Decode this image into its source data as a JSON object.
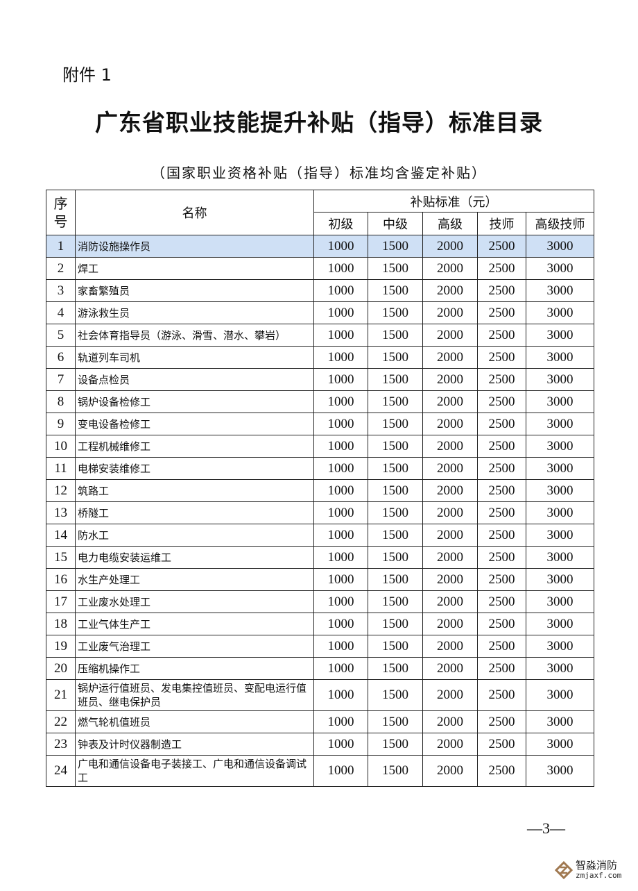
{
  "attachment_label": "附件 1",
  "title": "广东省职业技能提升补贴（指导）标准目录",
  "subtitle": "（国家职业资格补贴（指导）标准均含鉴定补贴）",
  "table": {
    "headers": {
      "seq": "序号",
      "name": "名称",
      "group": "补贴标准（元）",
      "levels": [
        "初级",
        "中级",
        "高级",
        "技师",
        "高级技师"
      ]
    },
    "rows": [
      {
        "seq": "1",
        "name": "消防设施操作员",
        "values": [
          "1000",
          "1500",
          "2000",
          "2500",
          "3000"
        ],
        "highlighted": true
      },
      {
        "seq": "2",
        "name": "焊工",
        "values": [
          "1000",
          "1500",
          "2000",
          "2500",
          "3000"
        ]
      },
      {
        "seq": "3",
        "name": "家畜繁殖员",
        "values": [
          "1000",
          "1500",
          "2000",
          "2500",
          "3000"
        ]
      },
      {
        "seq": "4",
        "name": "游泳救生员",
        "values": [
          "1000",
          "1500",
          "2000",
          "2500",
          "3000"
        ]
      },
      {
        "seq": "5",
        "name": "社会体育指导员（游泳、滑雪、潜水、攀岩）",
        "values": [
          "1000",
          "1500",
          "2000",
          "2500",
          "3000"
        ]
      },
      {
        "seq": "6",
        "name": "轨道列车司机",
        "values": [
          "1000",
          "1500",
          "2000",
          "2500",
          "3000"
        ]
      },
      {
        "seq": "7",
        "name": "设备点检员",
        "values": [
          "1000",
          "1500",
          "2000",
          "2500",
          "3000"
        ]
      },
      {
        "seq": "8",
        "name": "锅炉设备检修工",
        "values": [
          "1000",
          "1500",
          "2000",
          "2500",
          "3000"
        ]
      },
      {
        "seq": "9",
        "name": "变电设备检修工",
        "values": [
          "1000",
          "1500",
          "2000",
          "2500",
          "3000"
        ]
      },
      {
        "seq": "10",
        "name": "工程机械维修工",
        "values": [
          "1000",
          "1500",
          "2000",
          "2500",
          "3000"
        ]
      },
      {
        "seq": "11",
        "name": "电梯安装维修工",
        "values": [
          "1000",
          "1500",
          "2000",
          "2500",
          "3000"
        ]
      },
      {
        "seq": "12",
        "name": "筑路工",
        "values": [
          "1000",
          "1500",
          "2000",
          "2500",
          "3000"
        ]
      },
      {
        "seq": "13",
        "name": "桥隧工",
        "values": [
          "1000",
          "1500",
          "2000",
          "2500",
          "3000"
        ]
      },
      {
        "seq": "14",
        "name": "防水工",
        "values": [
          "1000",
          "1500",
          "2000",
          "2500",
          "3000"
        ]
      },
      {
        "seq": "15",
        "name": "电力电缆安装运维工",
        "values": [
          "1000",
          "1500",
          "2000",
          "2500",
          "3000"
        ]
      },
      {
        "seq": "16",
        "name": "水生产处理工",
        "values": [
          "1000",
          "1500",
          "2000",
          "2500",
          "3000"
        ]
      },
      {
        "seq": "17",
        "name": "工业废水处理工",
        "values": [
          "1000",
          "1500",
          "2000",
          "2500",
          "3000"
        ]
      },
      {
        "seq": "18",
        "name": "工业气体生产工",
        "values": [
          "1000",
          "1500",
          "2000",
          "2500",
          "3000"
        ]
      },
      {
        "seq": "19",
        "name": "工业废气治理工",
        "values": [
          "1000",
          "1500",
          "2000",
          "2500",
          "3000"
        ]
      },
      {
        "seq": "20",
        "name": "压缩机操作工",
        "values": [
          "1000",
          "1500",
          "2000",
          "2500",
          "3000"
        ]
      },
      {
        "seq": "21",
        "name": "锅炉运行值班员、发电集控值班员、变配电运行值班员、继电保护员",
        "values": [
          "1000",
          "1500",
          "2000",
          "2500",
          "3000"
        ],
        "tall": true
      },
      {
        "seq": "22",
        "name": "燃气轮机值班员",
        "values": [
          "1000",
          "1500",
          "2000",
          "2500",
          "3000"
        ]
      },
      {
        "seq": "23",
        "name": "钟表及计时仪器制造工",
        "values": [
          "1000",
          "1500",
          "2000",
          "2500",
          "3000"
        ]
      },
      {
        "seq": "24",
        "name": "广电和通信设备电子装接工、广电和通信设备调试工",
        "values": [
          "1000",
          "1500",
          "2000",
          "2500",
          "3000"
        ],
        "tall": true
      }
    ]
  },
  "page_number": "—3—",
  "highlight_color": "#cfe0f5",
  "watermark": {
    "name": "智淼消防",
    "domain": "zmjaxf.com",
    "logo_color": "#a07850"
  }
}
